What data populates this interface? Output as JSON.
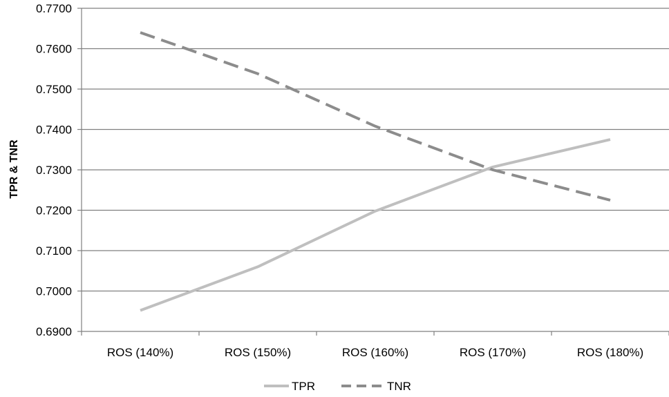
{
  "chart_data": {
    "type": "line",
    "title": "",
    "xlabel": "",
    "ylabel": "TPR & TNR",
    "categories": [
      "ROS (140%)",
      "ROS (150%)",
      "ROS (160%)",
      "ROS (170%)",
      "ROS (180%)"
    ],
    "ylim": [
      0.69,
      0.77
    ],
    "yticks": [
      "0.6900",
      "0.7000",
      "0.7100",
      "0.7200",
      "0.7300",
      "0.7400",
      "0.7500",
      "0.7600",
      "0.7700"
    ],
    "grid": true,
    "legend_position": "bottom",
    "series": [
      {
        "name": "TPR",
        "values": [
          0.6952,
          0.706,
          0.7198,
          0.7307,
          0.7375
        ],
        "color": "#bfbfbf",
        "style": "solid"
      },
      {
        "name": "TNR",
        "values": [
          0.764,
          0.7538,
          0.7408,
          0.73,
          0.7225
        ],
        "color": "#8c8c8c",
        "style": "dashed"
      }
    ]
  }
}
